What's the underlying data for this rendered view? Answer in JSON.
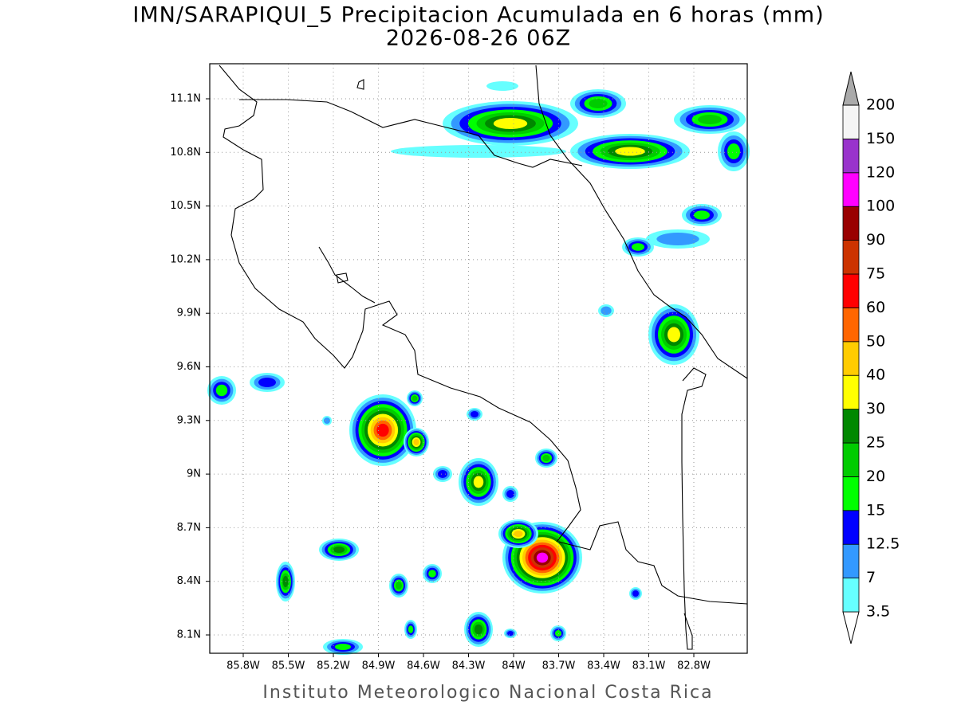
{
  "header": {
    "title": "IMN/SARAPIQUI_5 Precipitacion Acumulada en 6 horas (mm)",
    "subtitle": "2026-08-26 06Z"
  },
  "map": {
    "lat_labels": [
      "11.1N",
      "10.8N",
      "10.5N",
      "10.2N",
      "9.9N",
      "9.6N",
      "9.3N",
      "9N",
      "8.7N",
      "8.4N",
      "8.1N"
    ],
    "lon_labels": [
      "85.8W",
      "85.5W",
      "85.2W",
      "84.9W",
      "84.6W",
      "84.3W",
      "84W",
      "83.7W",
      "83.4W",
      "83.1W",
      "82.8W"
    ]
  },
  "colorbar": {
    "levels": [
      3.5,
      7,
      12.5,
      15,
      20,
      25,
      30,
      40,
      50,
      60,
      75,
      90,
      100,
      120,
      150,
      200
    ],
    "colors": [
      "#ffffff",
      "#66ffff",
      "#3399ff",
      "#0000ff",
      "#00ff00",
      "#00cc00",
      "#008800",
      "#ffff00",
      "#ffcc00",
      "#ff6600",
      "#ff0000",
      "#cc3300",
      "#990000",
      "#ff00ff",
      "#9933cc",
      "#f5f5f5",
      "#aaaaaa"
    ]
  },
  "footer": "Instituto Meteorologico Nacional Costa Rica"
}
